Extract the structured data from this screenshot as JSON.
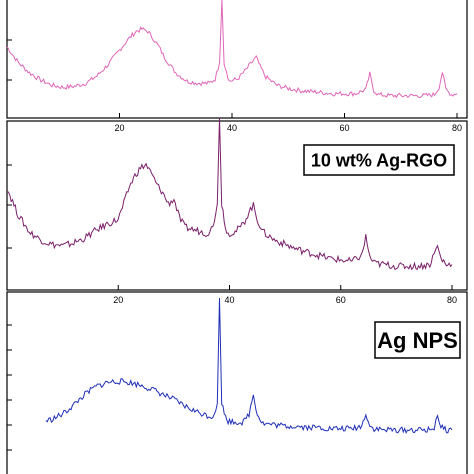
{
  "chart_data": [
    {
      "type": "line",
      "panel": "top",
      "color": "#e066b8",
      "label": "",
      "xlim": [
        0,
        80
      ],
      "x_ticks": [
        20,
        40,
        60,
        80
      ],
      "tick_labels": [
        "20",
        "40",
        "60",
        "80"
      ],
      "peaks_2theta": [
        24.5,
        38.2,
        44.3,
        64.5,
        77.4
      ],
      "x": [
        0,
        2,
        4,
        6,
        8,
        10,
        12,
        14,
        16,
        18,
        20,
        22,
        23,
        24,
        25,
        26,
        27,
        28,
        30,
        32,
        34,
        36,
        37,
        37.8,
        38.2,
        38.6,
        39.5,
        41,
        42.5,
        43.5,
        44.3,
        45,
        46,
        48,
        50,
        52,
        54,
        56,
        58,
        60,
        62,
        63.8,
        64.5,
        65.2,
        66,
        68,
        70,
        72,
        74,
        76,
        76.8,
        77.4,
        78,
        79,
        80
      ],
      "y": [
        0.55,
        0.4,
        0.3,
        0.23,
        0.18,
        0.16,
        0.17,
        0.2,
        0.27,
        0.38,
        0.52,
        0.65,
        0.7,
        0.72,
        0.7,
        0.63,
        0.55,
        0.45,
        0.3,
        0.22,
        0.2,
        0.2,
        0.24,
        0.4,
        1.0,
        0.4,
        0.22,
        0.24,
        0.33,
        0.4,
        0.45,
        0.36,
        0.26,
        0.18,
        0.15,
        0.13,
        0.12,
        0.11,
        0.1,
        0.1,
        0.1,
        0.14,
        0.29,
        0.13,
        0.09,
        0.08,
        0.08,
        0.08,
        0.08,
        0.09,
        0.16,
        0.31,
        0.14,
        0.09,
        0.1
      ]
    },
    {
      "type": "line",
      "panel": "middle",
      "color": "#7a1f6a",
      "label": "10 wt% Ag-RGO",
      "xlim": [
        0,
        80
      ],
      "x_ticks": [
        20,
        40,
        60,
        80
      ],
      "tick_labels": [
        "20",
        "40",
        "60",
        "80"
      ],
      "peaks_2theta": [
        24.5,
        38.2,
        44.3,
        64.5,
        77.4
      ],
      "x": [
        0,
        2,
        4,
        6,
        8,
        10,
        12,
        14,
        16,
        18,
        20,
        21,
        22,
        23,
        24,
        25,
        26,
        27,
        28,
        29,
        30,
        31,
        32,
        34,
        36,
        37,
        37.8,
        38.2,
        38.6,
        39.5,
        41,
        42.5,
        43.5,
        44.3,
        45,
        46,
        48,
        50,
        52,
        54,
        56,
        58,
        60,
        62,
        63.8,
        64.5,
        65.2,
        66,
        68,
        70,
        72,
        74,
        76,
        76.8,
        77.4,
        78,
        79,
        80
      ],
      "y": [
        0.55,
        0.38,
        0.27,
        0.22,
        0.19,
        0.18,
        0.2,
        0.23,
        0.28,
        0.32,
        0.35,
        0.45,
        0.56,
        0.63,
        0.68,
        0.7,
        0.64,
        0.57,
        0.52,
        0.45,
        0.48,
        0.36,
        0.3,
        0.28,
        0.26,
        0.3,
        0.45,
        1.0,
        0.45,
        0.26,
        0.27,
        0.32,
        0.4,
        0.44,
        0.35,
        0.27,
        0.22,
        0.19,
        0.16,
        0.14,
        0.12,
        0.1,
        0.09,
        0.08,
        0.12,
        0.24,
        0.11,
        0.07,
        0.06,
        0.05,
        0.05,
        0.05,
        0.06,
        0.13,
        0.18,
        0.1,
        0.06,
        0.06
      ]
    },
    {
      "type": "line",
      "panel": "bottom",
      "color": "#1f2fb5",
      "label": "Ag NPS",
      "xlim": [
        0,
        80
      ],
      "x_ticks": [
        20,
        40,
        60,
        80
      ],
      "tick_labels": [
        "20",
        "40",
        "60",
        "80"
      ],
      "peaks_2theta": [
        20.5,
        38.2,
        44.3,
        64.5,
        77.4
      ],
      "x": [
        7,
        8,
        10,
        12,
        14,
        16,
        18,
        20,
        22,
        24,
        26,
        28,
        30,
        32,
        34,
        36,
        37,
        37.8,
        38.2,
        38.6,
        39.5,
        41,
        42.5,
        43.5,
        44.3,
        45,
        46,
        48,
        50,
        52,
        54,
        56,
        58,
        60,
        62,
        63.8,
        64.5,
        65.2,
        66,
        68,
        70,
        72,
        74,
        76,
        76.8,
        77.4,
        78,
        79,
        80
      ],
      "y": [
        0.07,
        0.08,
        0.12,
        0.19,
        0.27,
        0.33,
        0.36,
        0.37,
        0.36,
        0.34,
        0.31,
        0.27,
        0.23,
        0.18,
        0.14,
        0.11,
        0.1,
        0.2,
        1.0,
        0.2,
        0.07,
        0.06,
        0.06,
        0.12,
        0.27,
        0.12,
        0.05,
        0.04,
        0.03,
        0.03,
        0.02,
        0.02,
        0.01,
        0.01,
        0.01,
        0.03,
        0.13,
        0.03,
        0.01,
        0.0,
        0.0,
        0.0,
        0.0,
        0.0,
        0.02,
        0.12,
        0.02,
        0.0,
        0.0
      ]
    }
  ]
}
